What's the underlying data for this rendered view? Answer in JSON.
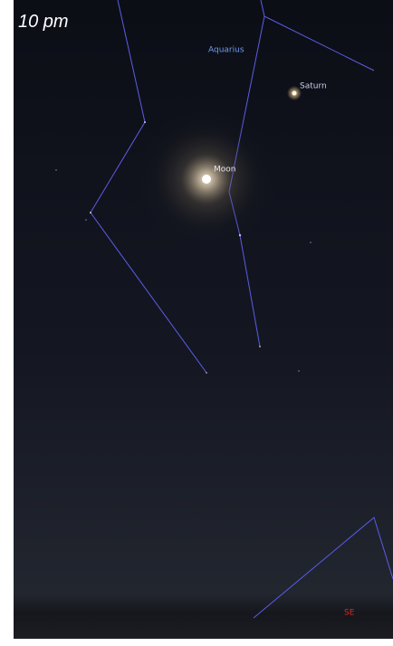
{
  "time_label": "10 pm",
  "labels": {
    "constellation": "Aquarius",
    "planet": "Saturn",
    "moon": "Moon"
  },
  "direction": "SE"
}
